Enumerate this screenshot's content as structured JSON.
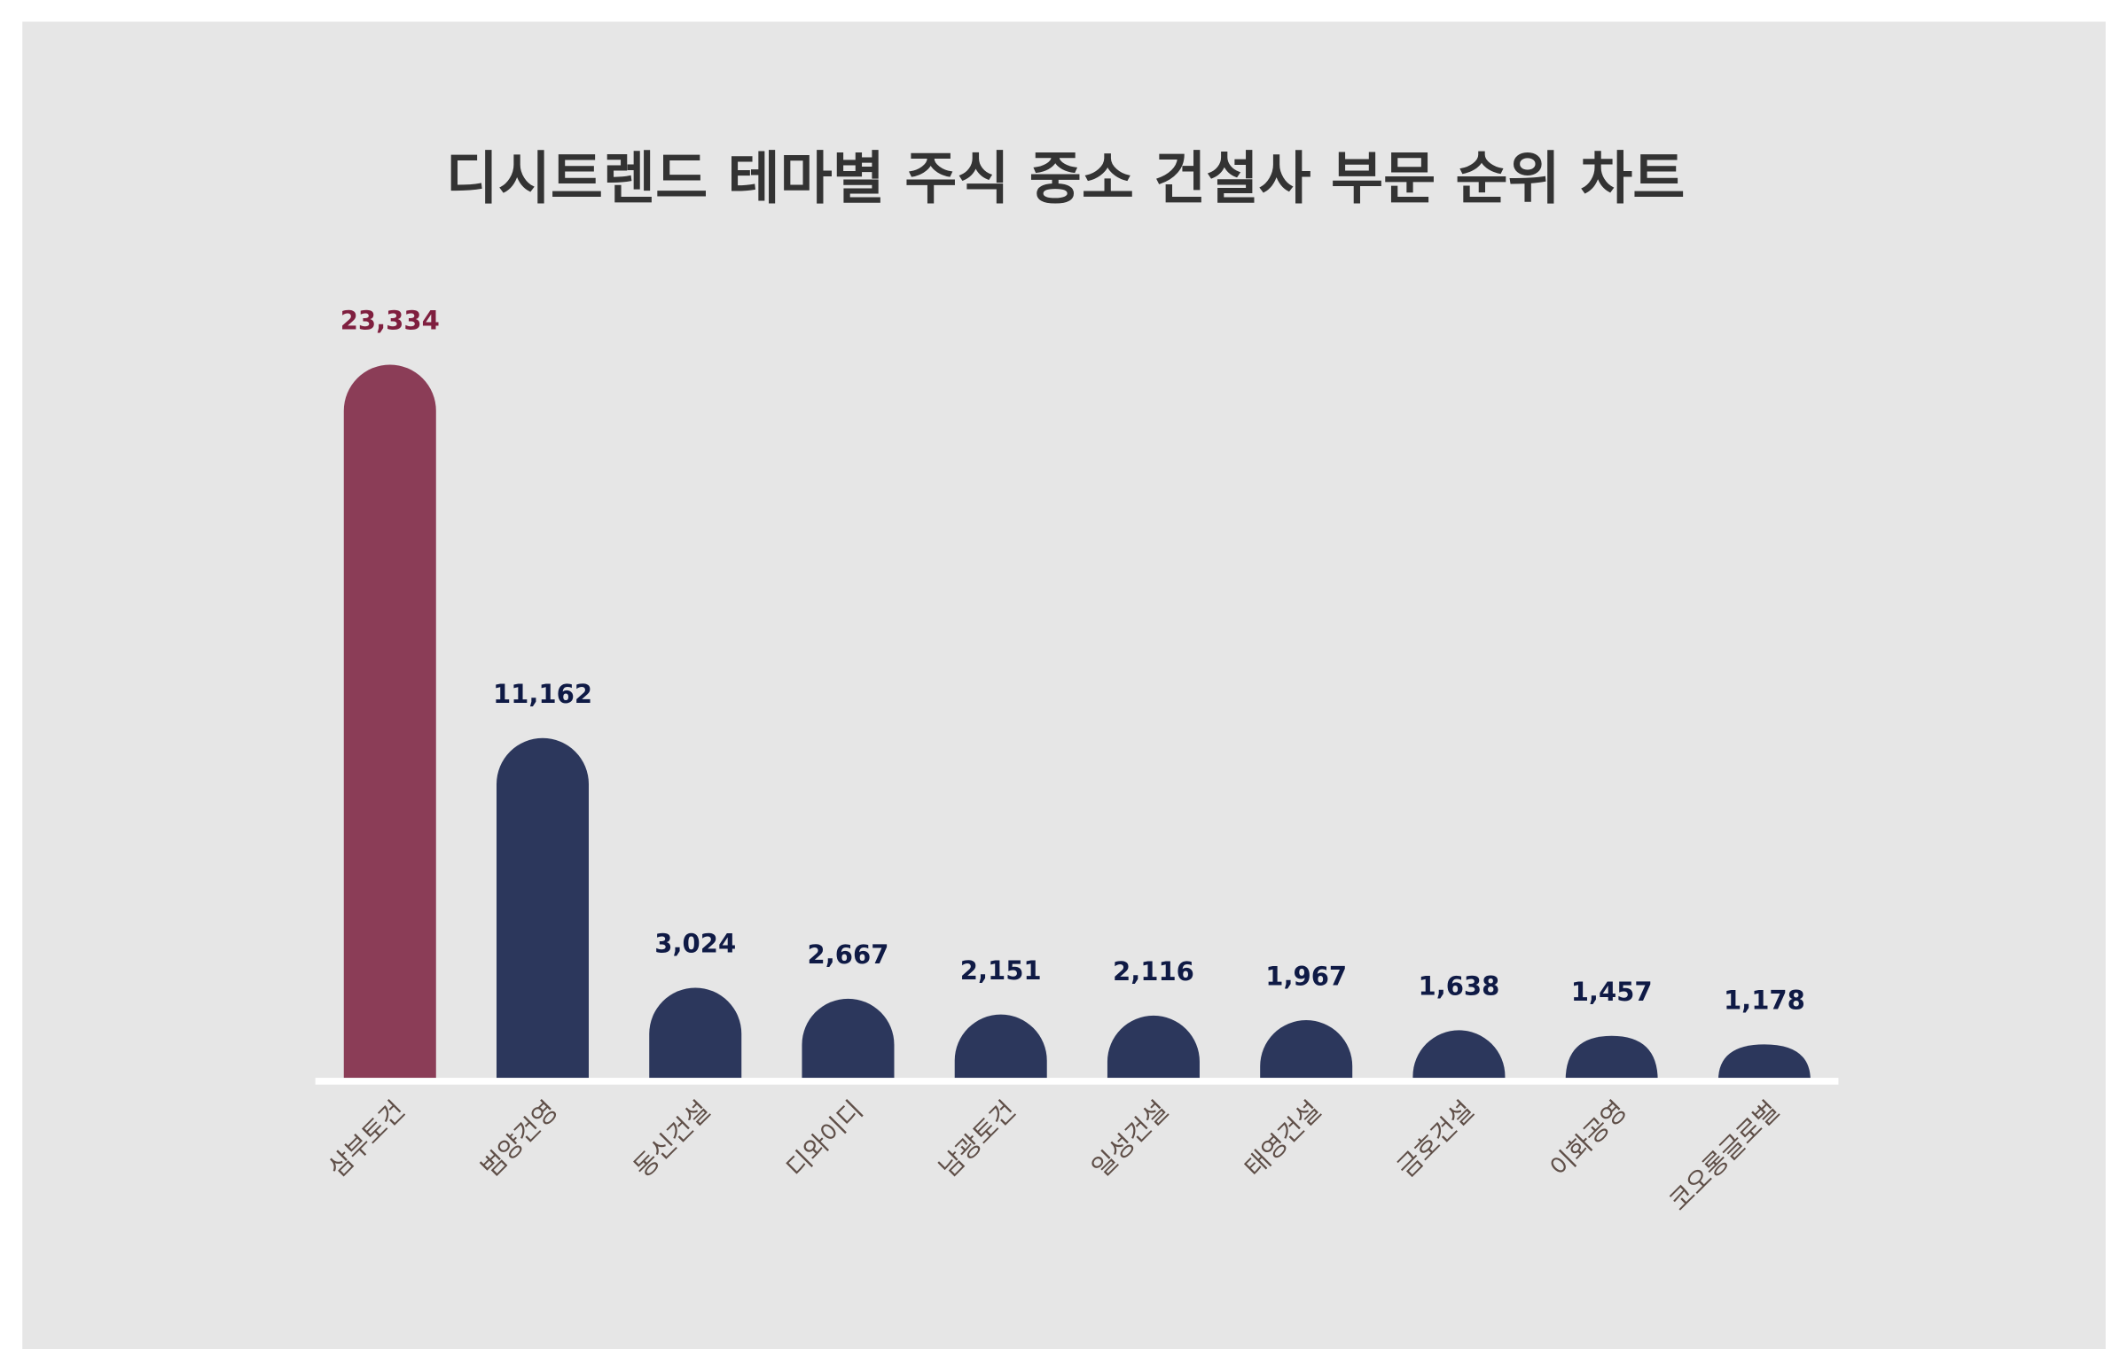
{
  "chart_data": {
    "type": "bar",
    "title": "디시트렌드 테마별 주식 중소 건설사 부문 순위 차트",
    "xlabel": "",
    "ylabel": "",
    "categories": [
      "삼부토건",
      "범양건영",
      "동신건설",
      "디와이디",
      "남광토건",
      "일성건설",
      "태영건설",
      "금호건설",
      "이화공영",
      "코오롱글로벌"
    ],
    "values": [
      23334,
      11162,
      3024,
      2667,
      2151,
      2116,
      1967,
      1638,
      1457,
      1178
    ],
    "value_labels": [
      "23,334",
      "11,162",
      "3,024",
      "2,667",
      "2,151",
      "2,116",
      "1,967",
      "1,638",
      "1,457",
      "1,178"
    ],
    "ylim": [
      0,
      23334
    ],
    "grid": false,
    "legend": "none",
    "colors": {
      "highlight_bar": "#8b3d57",
      "bar": "#2c375c",
      "highlight_label": "#7f1f3f",
      "label": "#0f1a45",
      "background": "#e6e6e6",
      "baseline": "#ffffff"
    }
  }
}
